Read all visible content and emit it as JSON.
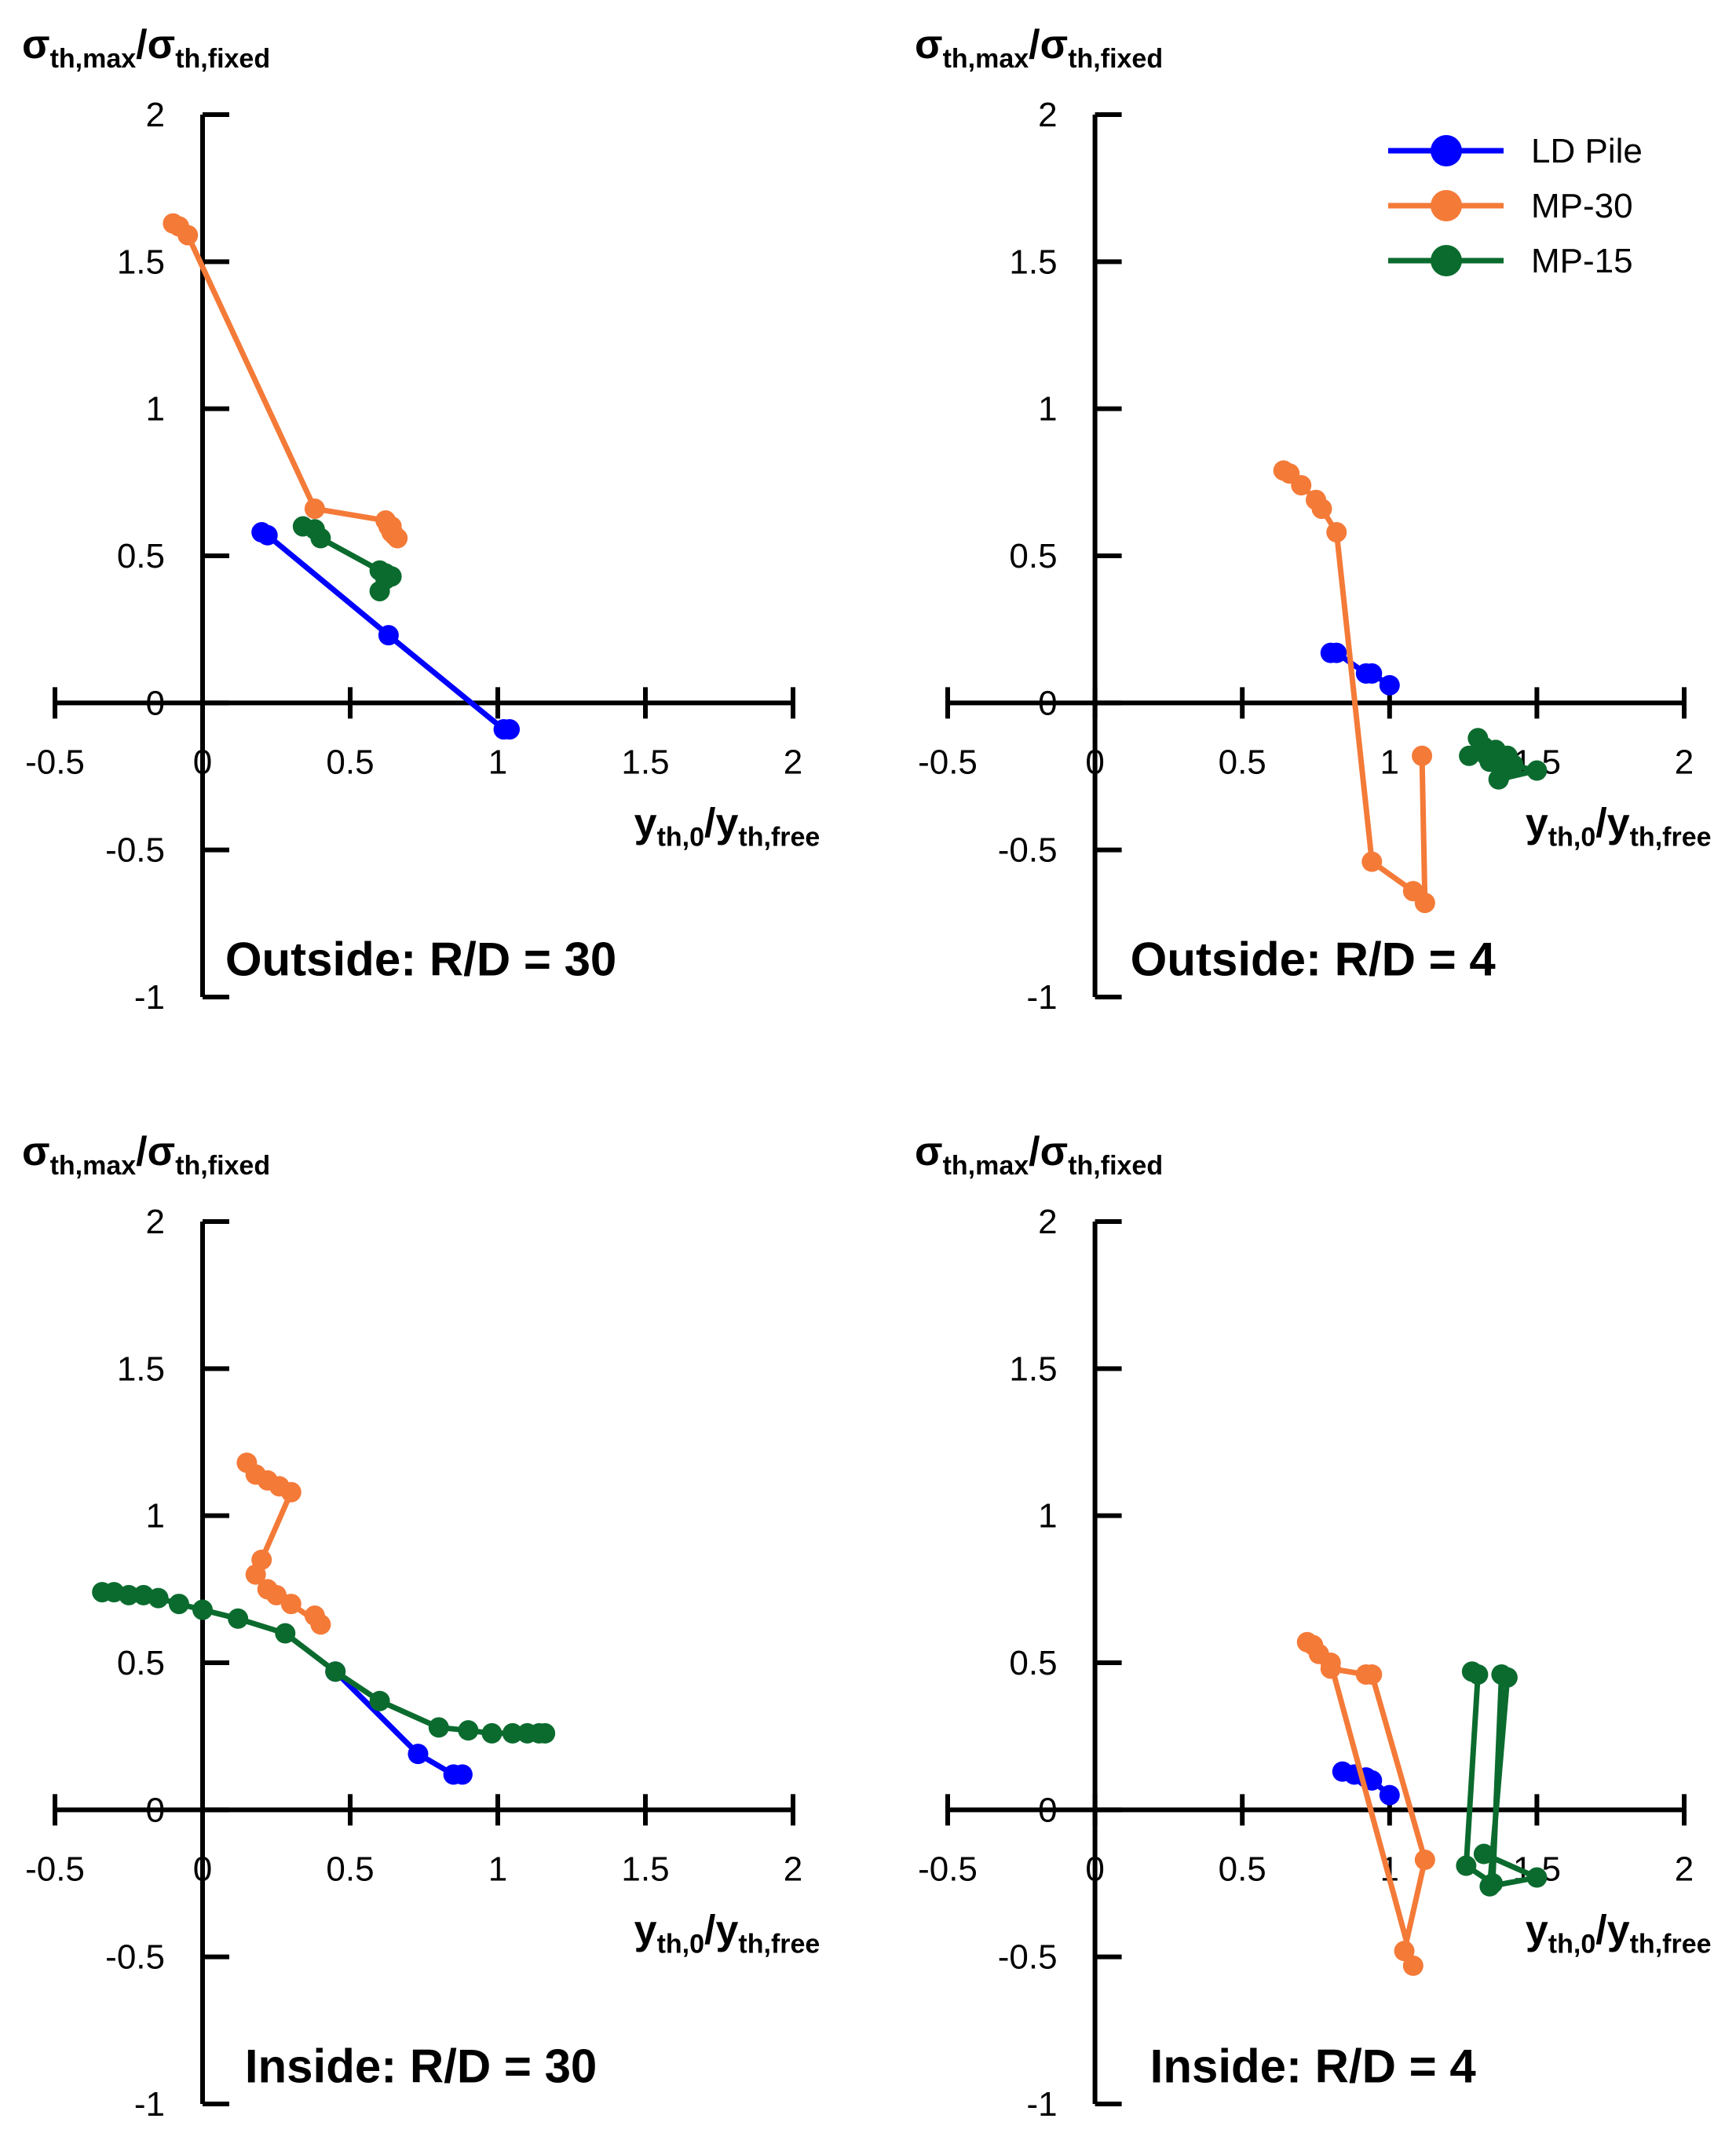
{
  "figure": {
    "legend": [
      {
        "name": "LD Pile",
        "color": "#0000FF"
      },
      {
        "name": "MP-30",
        "color": "#F47A38"
      },
      {
        "name": "MP-15",
        "color": "#0B6B2E"
      }
    ]
  },
  "chart_data": [
    {
      "type": "line",
      "title": "Outside: R/D = 30",
      "xlabel": {
        "main": "y",
        "sub": "th,0",
        "slash": "/",
        "main2": "y",
        "sub2": "th,free"
      },
      "ylabel": {
        "main": "σ",
        "sub": "th,max",
        "slash": "/",
        "main2": "σ",
        "sub2": "th,fixed"
      },
      "xlim": [
        -0.5,
        2
      ],
      "ylim": [
        -1,
        2
      ],
      "xticks": [
        "-0.5",
        "0",
        "0.5",
        "1",
        "1.5",
        "2"
      ],
      "yticks": [
        "-1",
        "-0.5",
        "0",
        "0.5",
        "1",
        "1.5",
        "2"
      ],
      "series": [
        {
          "name": "LD Pile",
          "color": "#0000FF",
          "x": [
            0.2,
            0.22,
            0.63,
            1.02,
            1.04
          ],
          "y": [
            0.58,
            0.57,
            0.23,
            -0.09,
            -0.09
          ]
        },
        {
          "name": "MP-30",
          "color": "#F47A38",
          "x": [
            -0.1,
            -0.08,
            -0.05,
            0.38,
            0.62,
            0.64,
            0.65,
            0.66,
            0.63,
            0.64
          ],
          "y": [
            1.63,
            1.62,
            1.59,
            0.66,
            0.62,
            0.6,
            0.57,
            0.56,
            0.6,
            0.58
          ]
        },
        {
          "name": "MP-15",
          "color": "#0B6B2E",
          "x": [
            0.34,
            0.38,
            0.4,
            0.6,
            0.62,
            0.64,
            0.6,
            0.62
          ],
          "y": [
            0.6,
            0.59,
            0.56,
            0.45,
            0.44,
            0.43,
            0.38,
            0.42
          ]
        }
      ]
    },
    {
      "type": "line",
      "title": "Outside: R/D = 4",
      "xlabel": {
        "main": "y",
        "sub": "th,0",
        "slash": "/",
        "main2": "y",
        "sub2": "th,free"
      },
      "ylabel": {
        "main": "σ",
        "sub": "th,max",
        "slash": "/",
        "main2": "σ",
        "sub2": "th,fixed"
      },
      "xlim": [
        -0.5,
        2
      ],
      "ylim": [
        -1,
        2
      ],
      "xticks": [
        "-0.5",
        "0",
        "0.5",
        "1",
        "1.5",
        "2"
      ],
      "yticks": [
        "-1",
        "-0.5",
        "0",
        "0.5",
        "1",
        "1.5",
        "2"
      ],
      "series": [
        {
          "name": "LD Pile",
          "color": "#0000FF",
          "x": [
            0.8,
            0.82,
            0.92,
            0.94,
            1.0
          ],
          "y": [
            0.17,
            0.17,
            0.1,
            0.1,
            0.06
          ]
        },
        {
          "name": "MP-30",
          "color": "#F47A38",
          "x": [
            0.64,
            0.66,
            0.7,
            0.75,
            0.77,
            0.82,
            0.94,
            1.08,
            1.12,
            1.11
          ],
          "y": [
            0.79,
            0.78,
            0.74,
            0.69,
            0.66,
            0.58,
            -0.54,
            -0.64,
            -0.68,
            -0.18
          ]
        },
        {
          "name": "MP-15",
          "color": "#0B6B2E",
          "x": [
            1.27,
            1.3,
            1.32,
            1.34,
            1.36,
            1.38,
            1.4,
            1.42,
            1.37,
            1.5,
            1.36,
            1.33
          ],
          "y": [
            -0.18,
            -0.12,
            -0.15,
            -0.2,
            -0.16,
            -0.24,
            -0.18,
            -0.21,
            -0.26,
            -0.23,
            -0.2,
            -0.18
          ]
        }
      ]
    },
    {
      "type": "line",
      "title": "Inside: R/D = 30",
      "xlabel": {
        "main": "y",
        "sub": "th,0",
        "slash": "/",
        "main2": "y",
        "sub2": "th,free"
      },
      "ylabel": {
        "main": "σ",
        "sub": "th,max",
        "slash": "/",
        "main2": "σ",
        "sub2": "th,fixed"
      },
      "xlim": [
        -0.5,
        2
      ],
      "ylim": [
        -1,
        2
      ],
      "xticks": [
        "-0.5",
        "0",
        "0.5",
        "1",
        "1.5",
        "2"
      ],
      "yticks": [
        "-1",
        "-0.5",
        "0",
        "0.5",
        "1",
        "1.5",
        "2"
      ],
      "series": [
        {
          "name": "LD Pile",
          "color": "#0000FF",
          "x": [
            0.45,
            0.73,
            0.85,
            0.88
          ],
          "y": [
            0.47,
            0.19,
            0.12,
            0.12
          ]
        },
        {
          "name": "MP-30",
          "color": "#F47A38",
          "x": [
            0.15,
            0.18,
            0.22,
            0.26,
            0.3,
            0.2,
            0.18,
            0.22,
            0.25,
            0.3,
            0.4,
            0.38
          ],
          "y": [
            1.18,
            1.14,
            1.12,
            1.1,
            1.08,
            0.85,
            0.8,
            0.75,
            0.73,
            0.7,
            0.63,
            0.66
          ]
        },
        {
          "name": "MP-15",
          "color": "#0B6B2E",
          "x": [
            -0.34,
            -0.3,
            -0.25,
            -0.2,
            -0.15,
            -0.08,
            0.0,
            0.12,
            0.28,
            0.45,
            0.6,
            0.8,
            0.9,
            0.98,
            1.05,
            1.1,
            1.14,
            1.16
          ],
          "y": [
            0.74,
            0.74,
            0.73,
            0.73,
            0.72,
            0.7,
            0.68,
            0.65,
            0.6,
            0.47,
            0.37,
            0.28,
            0.27,
            0.26,
            0.26,
            0.26,
            0.26,
            0.26
          ]
        }
      ]
    },
    {
      "type": "line",
      "title": "Inside: R/D = 4",
      "xlabel": {
        "main": "y",
        "sub": "th,0",
        "slash": "/",
        "main2": "y",
        "sub2": "th,free"
      },
      "ylabel": {
        "main": "σ",
        "sub": "th,max",
        "slash": "/",
        "main2": "σ",
        "sub2": "th,fixed"
      },
      "xlim": [
        -0.5,
        2
      ],
      "ylim": [
        -1,
        2
      ],
      "xticks": [
        "-0.5",
        "0",
        "0.5",
        "1",
        "1.5",
        "2"
      ],
      "yticks": [
        "-1",
        "-0.5",
        "0",
        "0.5",
        "1",
        "1.5",
        "2"
      ],
      "series": [
        {
          "name": "LD Pile",
          "color": "#0000FF",
          "x": [
            0.84,
            0.88,
            0.92,
            0.94,
            1.0
          ],
          "y": [
            0.13,
            0.12,
            0.11,
            0.1,
            0.05
          ]
        },
        {
          "name": "MP-30",
          "color": "#F47A38",
          "x": [
            0.72,
            0.74,
            0.76,
            0.8,
            0.92,
            0.94,
            1.12,
            1.05,
            1.08,
            0.8
          ],
          "y": [
            0.57,
            0.56,
            0.53,
            0.48,
            0.46,
            0.46,
            -0.17,
            -0.48,
            -0.53,
            0.5
          ]
        },
        {
          "name": "MP-15",
          "color": "#0B6B2E",
          "x": [
            1.28,
            1.3,
            1.26,
            1.35,
            1.38,
            1.4,
            1.34,
            1.5,
            1.32
          ],
          "y": [
            0.47,
            0.46,
            -0.19,
            -0.25,
            0.46,
            0.45,
            -0.26,
            -0.23,
            -0.15
          ]
        }
      ]
    }
  ]
}
